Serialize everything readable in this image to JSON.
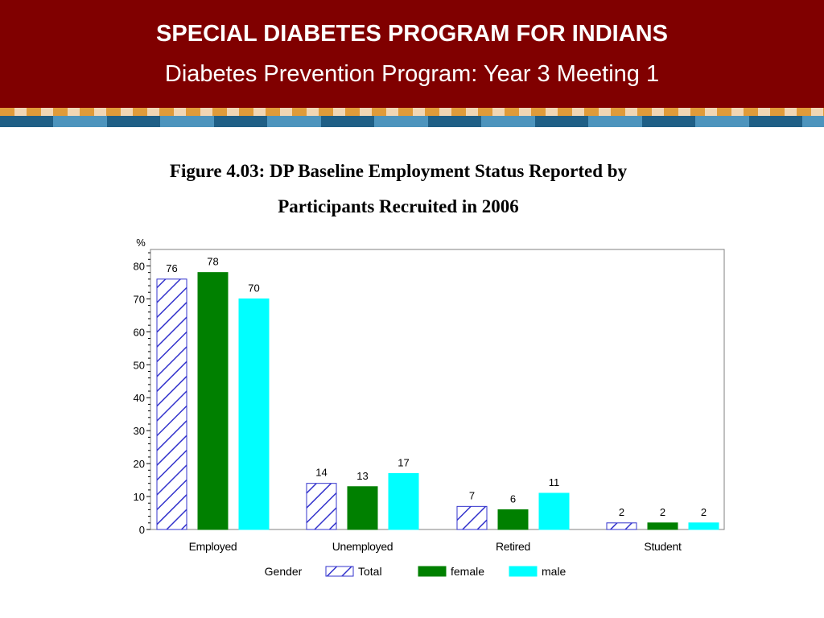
{
  "header": {
    "title": "SPECIAL DIABETES PROGRAM FOR INDIANS",
    "subtitle": "Diabetes Prevention Program: Year 3 Meeting 1"
  },
  "figure": {
    "title_line1": "Figure 4.03: DP Baseline Employment Status Reported by",
    "title_line2": "Participants Recruited in 2006"
  },
  "chart_data": {
    "type": "bar",
    "ylabel": "%",
    "ylim": [
      0,
      85
    ],
    "yticks": [
      0,
      10,
      20,
      30,
      40,
      50,
      60,
      70,
      80
    ],
    "grid": false,
    "categories": [
      "Employed",
      "Unemployed",
      "Retired",
      "Student"
    ],
    "legend_title": "Gender",
    "legend_position": "bottom",
    "series": [
      {
        "name": "Total",
        "values": [
          76,
          14,
          7,
          2
        ],
        "color": "#3333cc",
        "pattern": "hatch"
      },
      {
        "name": "female",
        "values": [
          78,
          13,
          6,
          2
        ],
        "color": "#008000",
        "pattern": "solid"
      },
      {
        "name": "male",
        "values": [
          70,
          17,
          11,
          2
        ],
        "color": "#00ffff",
        "pattern": "solid"
      }
    ]
  }
}
